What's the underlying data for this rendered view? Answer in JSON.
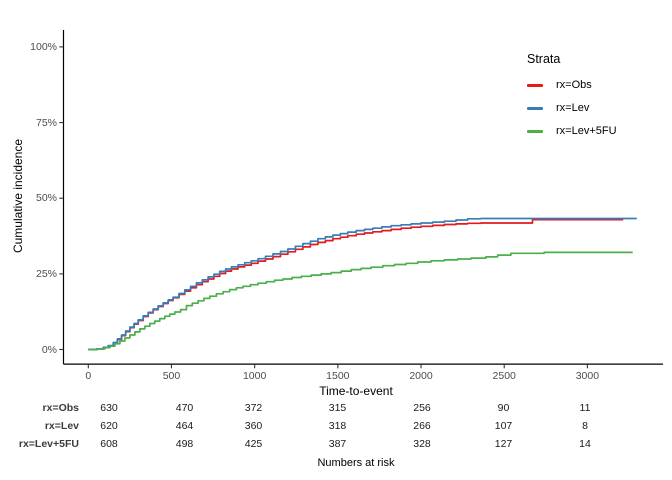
{
  "chart_data": {
    "type": "line",
    "subtype": "kaplan-meier-step-cumulative-incidence",
    "title": "",
    "xlabel": "Time-to-event",
    "ylabel": "Cumulative incidence",
    "x_ticks": [
      0,
      500,
      1000,
      1500,
      2000,
      2500,
      3000
    ],
    "x_tick_labels": [
      "0",
      "500",
      "1000",
      "1500",
      "2000",
      "2500",
      "3000"
    ],
    "y_ticks": [
      0,
      25,
      50,
      75,
      100
    ],
    "y_tick_labels": [
      "0%",
      "25%",
      "50%",
      "75%",
      "100%"
    ],
    "xlim": [
      -150,
      3450
    ],
    "ylim": [
      0,
      105
    ],
    "grid": false,
    "legend_title": "Strata",
    "legend_position": "right",
    "series": [
      {
        "name": "rx=Obs",
        "color": "#E41A1C",
        "points": [
          [
            0,
            0
          ],
          [
            50,
            0.2
          ],
          [
            90,
            0.6
          ],
          [
            120,
            1.2
          ],
          [
            150,
            2.2
          ],
          [
            175,
            3.3
          ],
          [
            200,
            4.6
          ],
          [
            225,
            5.9
          ],
          [
            250,
            7.2
          ],
          [
            275,
            8.4
          ],
          [
            300,
            9.6
          ],
          [
            330,
            10.9
          ],
          [
            360,
            12.1
          ],
          [
            390,
            13.2
          ],
          [
            420,
            14.2
          ],
          [
            450,
            15.2
          ],
          [
            480,
            16.2
          ],
          [
            510,
            17.1
          ],
          [
            545,
            18.2
          ],
          [
            580,
            19.3
          ],
          [
            615,
            20.4
          ],
          [
            650,
            21.4
          ],
          [
            685,
            22.4
          ],
          [
            720,
            23.3
          ],
          [
            755,
            24.2
          ],
          [
            790,
            25.1
          ],
          [
            825,
            25.9
          ],
          [
            860,
            26.6
          ],
          [
            900,
            27.3
          ],
          [
            940,
            27.9
          ],
          [
            980,
            28.5
          ],
          [
            1020,
            29.2
          ],
          [
            1065,
            29.9
          ],
          [
            1110,
            30.7
          ],
          [
            1155,
            31.5
          ],
          [
            1200,
            32.3
          ],
          [
            1245,
            33.1
          ],
          [
            1290,
            33.9
          ],
          [
            1335,
            34.7
          ],
          [
            1380,
            35.4
          ],
          [
            1425,
            36.0
          ],
          [
            1470,
            36.6
          ],
          [
            1515,
            37.1
          ],
          [
            1560,
            37.6
          ],
          [
            1610,
            38.1
          ],
          [
            1660,
            38.5
          ],
          [
            1710,
            38.9
          ],
          [
            1765,
            39.3
          ],
          [
            1820,
            39.7
          ],
          [
            1880,
            40.1
          ],
          [
            1940,
            40.4
          ],
          [
            2000,
            40.7
          ],
          [
            2070,
            41.0
          ],
          [
            2140,
            41.3
          ],
          [
            2210,
            41.5
          ],
          [
            2280,
            41.7
          ],
          [
            2360,
            41.8
          ],
          [
            2670,
            42.9
          ],
          [
            3215,
            42.9
          ]
        ]
      },
      {
        "name": "rx=Lev",
        "color": "#377EB8",
        "points": [
          [
            0,
            0
          ],
          [
            50,
            0.2
          ],
          [
            90,
            0.7
          ],
          [
            120,
            1.3
          ],
          [
            150,
            2.3
          ],
          [
            175,
            3.5
          ],
          [
            200,
            4.8
          ],
          [
            225,
            6.1
          ],
          [
            250,
            7.4
          ],
          [
            275,
            8.6
          ],
          [
            300,
            9.8
          ],
          [
            330,
            11.1
          ],
          [
            360,
            12.3
          ],
          [
            390,
            13.4
          ],
          [
            420,
            14.4
          ],
          [
            450,
            15.4
          ],
          [
            480,
            16.4
          ],
          [
            510,
            17.3
          ],
          [
            545,
            18.5
          ],
          [
            580,
            19.7
          ],
          [
            615,
            20.9
          ],
          [
            650,
            22.0
          ],
          [
            685,
            23.0
          ],
          [
            720,
            24.0
          ],
          [
            755,
            24.9
          ],
          [
            790,
            25.8
          ],
          [
            825,
            26.6
          ],
          [
            860,
            27.3
          ],
          [
            900,
            28.0
          ],
          [
            940,
            28.7
          ],
          [
            980,
            29.3
          ],
          [
            1020,
            30.0
          ],
          [
            1065,
            30.8
          ],
          [
            1110,
            31.6
          ],
          [
            1155,
            32.4
          ],
          [
            1200,
            33.2
          ],
          [
            1245,
            34.1
          ],
          [
            1290,
            35.0
          ],
          [
            1335,
            35.8
          ],
          [
            1380,
            36.6
          ],
          [
            1425,
            37.2
          ],
          [
            1470,
            37.8
          ],
          [
            1515,
            38.3
          ],
          [
            1560,
            38.8
          ],
          [
            1610,
            39.3
          ],
          [
            1660,
            39.7
          ],
          [
            1710,
            40.1
          ],
          [
            1765,
            40.5
          ],
          [
            1820,
            40.9
          ],
          [
            1880,
            41.2
          ],
          [
            1940,
            41.5
          ],
          [
            2000,
            41.8
          ],
          [
            2070,
            42.1
          ],
          [
            2140,
            42.4
          ],
          [
            2210,
            42.8
          ],
          [
            2280,
            43.2
          ],
          [
            2360,
            43.3
          ],
          [
            3297,
            43.3
          ]
        ]
      },
      {
        "name": "rx=Lev+5FU",
        "color": "#4DAF4A",
        "points": [
          [
            0,
            0
          ],
          [
            55,
            0.2
          ],
          [
            100,
            0.6
          ],
          [
            130,
            1.1
          ],
          [
            160,
            1.9
          ],
          [
            190,
            2.8
          ],
          [
            220,
            3.8
          ],
          [
            250,
            4.8
          ],
          [
            280,
            5.8
          ],
          [
            310,
            6.8
          ],
          [
            340,
            7.7
          ],
          [
            370,
            8.6
          ],
          [
            400,
            9.4
          ],
          [
            430,
            10.2
          ],
          [
            460,
            11.0
          ],
          [
            490,
            11.7
          ],
          [
            520,
            12.4
          ],
          [
            555,
            13.2
          ],
          [
            590,
            14.5
          ],
          [
            625,
            15.3
          ],
          [
            660,
            16.1
          ],
          [
            695,
            16.9
          ],
          [
            730,
            17.6
          ],
          [
            770,
            18.4
          ],
          [
            810,
            19.1
          ],
          [
            850,
            19.8
          ],
          [
            890,
            20.4
          ],
          [
            930,
            20.9
          ],
          [
            975,
            21.4
          ],
          [
            1020,
            21.9
          ],
          [
            1070,
            22.4
          ],
          [
            1120,
            22.9
          ],
          [
            1170,
            23.3
          ],
          [
            1225,
            23.8
          ],
          [
            1280,
            24.2
          ],
          [
            1340,
            24.6
          ],
          [
            1400,
            25.0
          ],
          [
            1460,
            25.4
          ],
          [
            1520,
            25.9
          ],
          [
            1580,
            26.4
          ],
          [
            1640,
            26.8
          ],
          [
            1700,
            27.2
          ],
          [
            1770,
            27.7
          ],
          [
            1840,
            28.1
          ],
          [
            1910,
            28.5
          ],
          [
            1980,
            28.9
          ],
          [
            2060,
            29.3
          ],
          [
            2140,
            29.6
          ],
          [
            2220,
            29.9
          ],
          [
            2300,
            30.2
          ],
          [
            2390,
            30.6
          ],
          [
            2460,
            31.2
          ],
          [
            2540,
            31.8
          ],
          [
            2740,
            32.1
          ],
          [
            3272,
            32.1
          ]
        ]
      }
    ],
    "risk_table": {
      "caption": "Numbers at risk",
      "times": [
        0,
        500,
        1000,
        1500,
        2000,
        2500,
        3000
      ],
      "rows": [
        {
          "label": "rx=Obs",
          "values": [
            "630",
            "470",
            "372",
            "315",
            "256",
            "90",
            "11"
          ]
        },
        {
          "label": "rx=Lev",
          "values": [
            "620",
            "464",
            "360",
            "318",
            "266",
            "107",
            "8"
          ]
        },
        {
          "label": "rx=Lev+5FU",
          "values": [
            "608",
            "498",
            "425",
            "387",
            "328",
            "127",
            "14"
          ]
        }
      ]
    }
  },
  "colors": {
    "axis_line": "#000000",
    "tick_text": "#4d4d4d",
    "background": "#ffffff"
  }
}
